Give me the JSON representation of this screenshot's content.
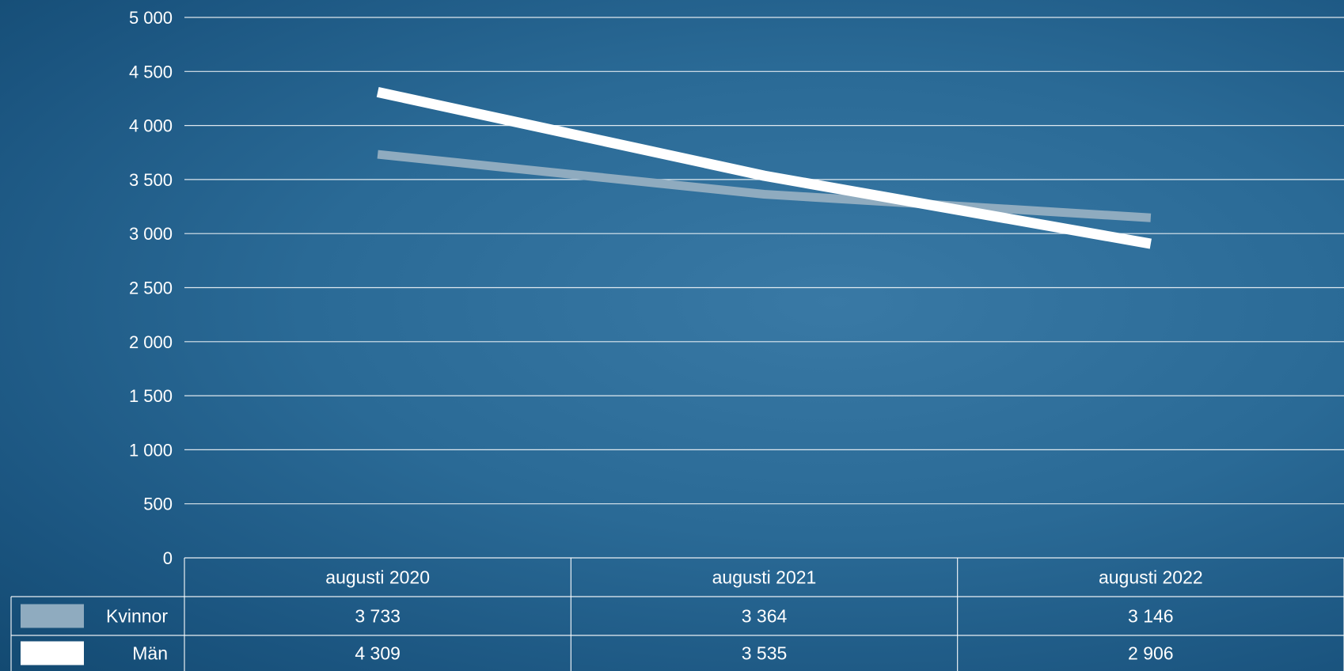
{
  "chart_data": {
    "type": "line",
    "title": "",
    "xlabel": "",
    "ylabel": "",
    "categories": [
      "augusti 2020",
      "augusti 2021",
      "augusti 2022"
    ],
    "ylim": [
      0,
      5000
    ],
    "yticks": [
      0,
      500,
      1000,
      1500,
      2000,
      2500,
      3000,
      3500,
      4000,
      4500,
      5000
    ],
    "ytick_labels": [
      "0",
      "500",
      "1 000",
      "1 500",
      "2 000",
      "2 500",
      "3 000",
      "3 500",
      "4 000",
      "4 500",
      "5 000"
    ],
    "grid": true,
    "legend": "data-table",
    "series": [
      {
        "name": "Kvinnor",
        "values": [
          3733,
          3364,
          3146
        ],
        "value_labels": [
          "3 733",
          "3 364",
          "3 146"
        ],
        "color": "#8fabbf"
      },
      {
        "name": "Män",
        "values": [
          4309,
          3535,
          2906
        ],
        "value_labels": [
          "4 309",
          "3 535",
          "2 906"
        ],
        "color": "#ffffff"
      }
    ]
  }
}
